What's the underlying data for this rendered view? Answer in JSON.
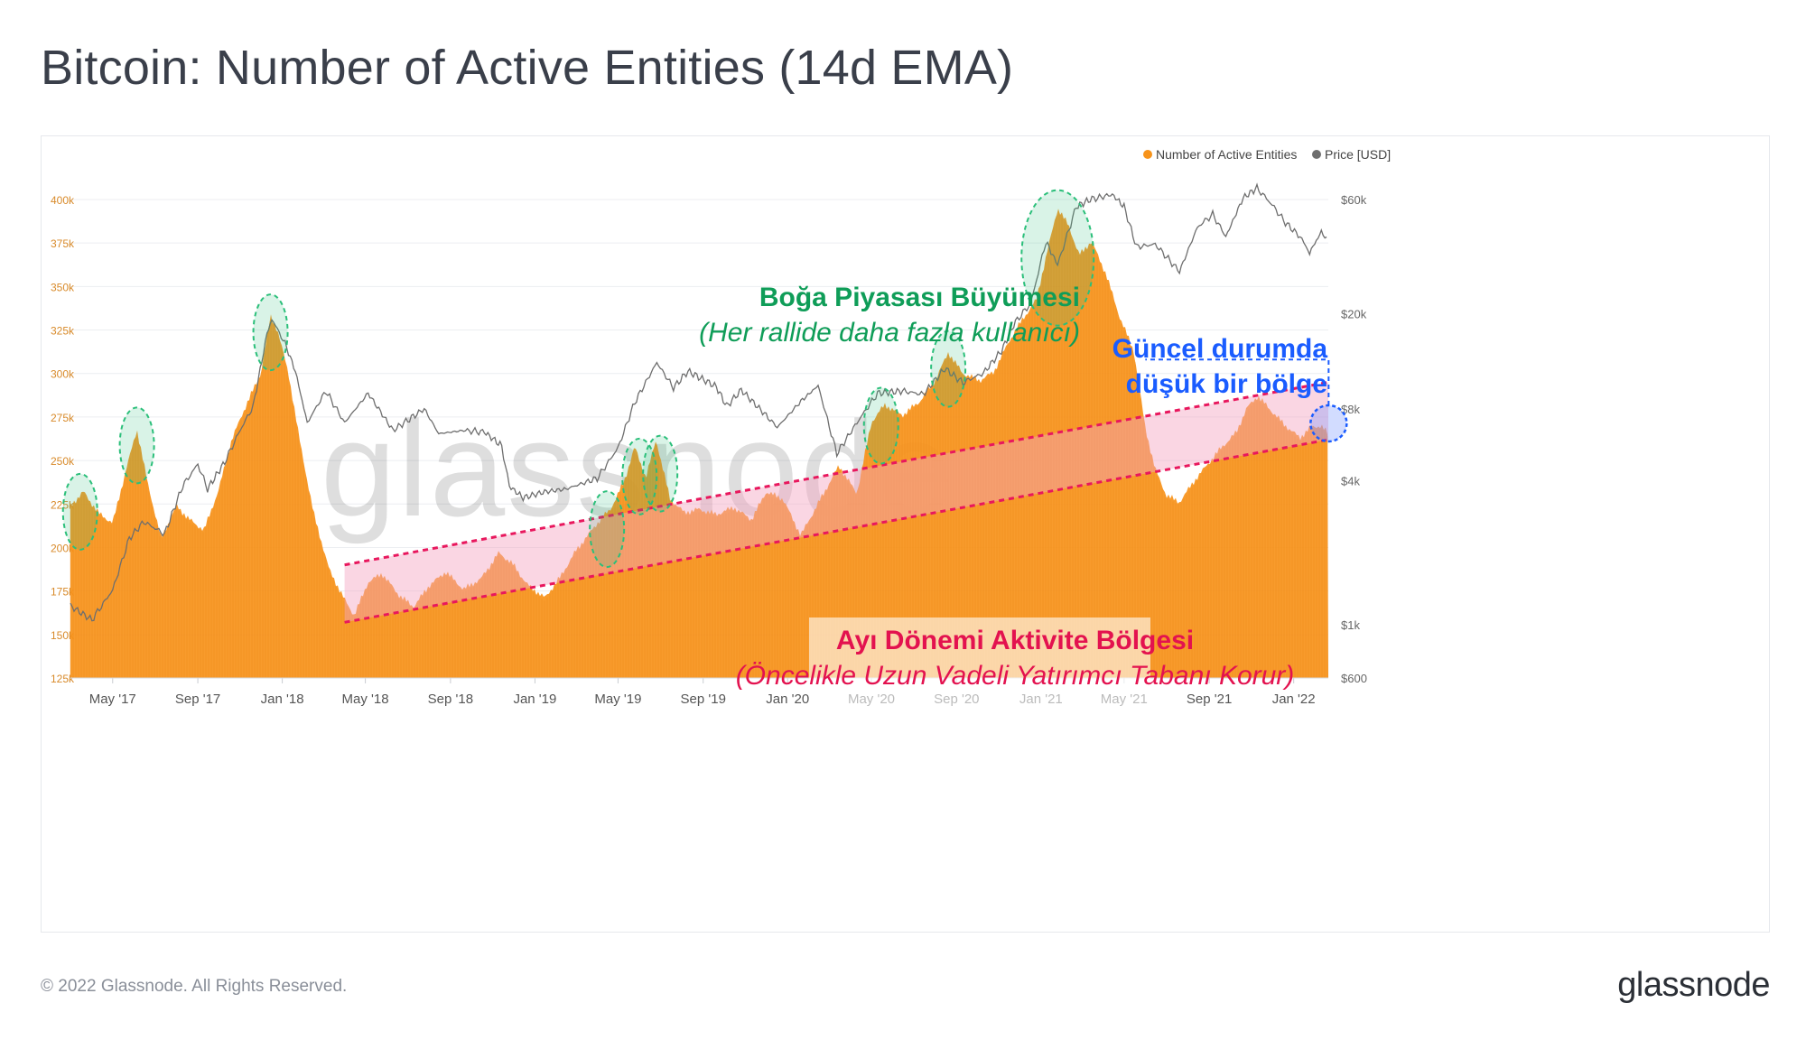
{
  "page": {
    "title": "Bitcoin: Number of Active Entities (14d EMA)",
    "copyright": "© 2022 Glassnode. All Rights Reserved.",
    "brand": "glassnode",
    "watermark": "glassnode"
  },
  "colors": {
    "entities": "#f7931a",
    "price": "#6e6e6e",
    "bear_band": "#f4a4c0",
    "bear_line": "#e8175d",
    "bull_text": "#0f9d58",
    "bull_circle": "#2bbf7a",
    "current_text": "#1a5cff"
  },
  "chart_data": {
    "type": "area",
    "title": "Bitcoin: Number of Active Entities (14d EMA)",
    "legend": {
      "placement": "top-right",
      "entries": [
        "Number of Active Entities",
        "Price [USD]"
      ]
    },
    "x_ticks": [
      "May '17",
      "Sep '17",
      "Jan '18",
      "May '18",
      "Sep '18",
      "Jan '19",
      "May '19",
      "Sep '19",
      "Jan '20",
      "May '20",
      "Sep '20",
      "Jan '21",
      "May '21",
      "Sep '21",
      "Jan '22"
    ],
    "x_range": [
      "2017-03-01",
      "2022-02-20"
    ],
    "y_left": {
      "ticks": [
        "125k",
        "150k",
        "175k",
        "200k",
        "225k",
        "250k",
        "275k",
        "300k",
        "325k",
        "350k",
        "375k",
        "400k"
      ],
      "range": [
        125000,
        400000
      ]
    },
    "y_right": {
      "scale": "log",
      "ticks": [
        "$600",
        "$1k",
        "$4k",
        "$8k",
        "$20k",
        "$60k"
      ],
      "range": [
        600,
        60000
      ]
    },
    "grid": true,
    "series": [
      {
        "name": "Number of Active Entities",
        "x": [
          "2017-03-01",
          "2017-03-20",
          "2017-04-10",
          "2017-05-01",
          "2017-05-20",
          "2017-06-05",
          "2017-06-20",
          "2017-07-10",
          "2017-08-01",
          "2017-08-20",
          "2017-09-10",
          "2017-10-01",
          "2017-10-20",
          "2017-11-10",
          "2017-12-01",
          "2017-12-15",
          "2017-12-25",
          "2018-01-10",
          "2018-01-25",
          "2018-02-15",
          "2018-03-10",
          "2018-04-01",
          "2018-04-15",
          "2018-05-05",
          "2018-05-25",
          "2018-06-20",
          "2018-07-10",
          "2018-08-01",
          "2018-08-25",
          "2018-09-20",
          "2018-10-15",
          "2018-11-10",
          "2018-12-01",
          "2018-12-20",
          "2019-01-15",
          "2019-02-05",
          "2019-03-01",
          "2019-04-01",
          "2019-04-20",
          "2019-05-10",
          "2019-05-25",
          "2019-06-10",
          "2019-06-25",
          "2019-07-15",
          "2019-08-05",
          "2019-08-25",
          "2019-09-20",
          "2019-10-15",
          "2019-11-10",
          "2019-12-01",
          "2019-12-25",
          "2020-01-20",
          "2020-02-15",
          "2020-03-15",
          "2020-04-10",
          "2020-05-01",
          "2020-05-20",
          "2020-06-15",
          "2020-07-10",
          "2020-08-01",
          "2020-08-20",
          "2020-09-10",
          "2020-10-05",
          "2020-10-25",
          "2020-11-15",
          "2020-12-05",
          "2020-12-25",
          "2021-01-10",
          "2021-01-25",
          "2021-02-10",
          "2021-02-25",
          "2021-03-15",
          "2021-04-05",
          "2021-04-25",
          "2021-05-15",
          "2021-06-01",
          "2021-06-15",
          "2021-07-01",
          "2021-07-20",
          "2021-08-10",
          "2021-09-01",
          "2021-09-20",
          "2021-10-10",
          "2021-10-25",
          "2021-11-10",
          "2021-12-01",
          "2021-12-20",
          "2022-01-10",
          "2022-01-25",
          "2022-02-10",
          "2022-02-20"
        ],
        "values": [
          224000,
          232000,
          220000,
          214000,
          244000,
          268000,
          238000,
          205000,
          224000,
          216000,
          210000,
          233000,
          262000,
          282000,
          300000,
          333000,
          325000,
          300000,
          264000,
          220000,
          187000,
          170000,
          161000,
          180000,
          185000,
          172000,
          166000,
          178000,
          186000,
          176000,
          182000,
          197000,
          190000,
          179000,
          171000,
          182000,
          198000,
          214000,
          222000,
          238000,
          258000,
          240000,
          262000,
          228000,
          220000,
          222000,
          219000,
          223000,
          216000,
          232000,
          228000,
          207000,
          226000,
          247000,
          231000,
          272000,
          282000,
          276000,
          284000,
          296000,
          312000,
          300000,
          296000,
          301000,
          318000,
          331000,
          342000,
          370000,
          395000,
          385000,
          368000,
          376000,
          357000,
          332000,
          313000,
          268000,
          245000,
          230000,
          226000,
          238000,
          249000,
          258000,
          266000,
          280000,
          287000,
          278000,
          270000,
          263000,
          269000,
          270000,
          265000
        ]
      },
      {
        "name": "Price [USD]",
        "x": [
          "2017-03-01",
          "2017-04-01",
          "2017-05-01",
          "2017-05-25",
          "2017-06-15",
          "2017-07-15",
          "2017-08-10",
          "2017-09-01",
          "2017-09-15",
          "2017-10-10",
          "2017-11-01",
          "2017-11-20",
          "2017-12-10",
          "2017-12-17",
          "2018-01-05",
          "2018-01-20",
          "2018-02-06",
          "2018-03-05",
          "2018-04-01",
          "2018-05-05",
          "2018-06-10",
          "2018-07-25",
          "2018-08-15",
          "2018-09-20",
          "2018-10-20",
          "2018-11-14",
          "2018-11-25",
          "2018-12-15",
          "2019-01-15",
          "2019-02-15",
          "2019-04-01",
          "2019-05-01",
          "2019-05-25",
          "2019-06-26",
          "2019-07-20",
          "2019-08-10",
          "2019-09-20",
          "2019-10-05",
          "2019-10-26",
          "2019-12-01",
          "2019-12-17",
          "2020-01-20",
          "2020-02-14",
          "2020-03-12",
          "2020-04-10",
          "2020-05-10",
          "2020-06-15",
          "2020-07-15",
          "2020-08-15",
          "2020-09-10",
          "2020-10-10",
          "2020-11-05",
          "2020-11-25",
          "2020-12-17",
          "2021-01-08",
          "2021-01-25",
          "2021-02-21",
          "2021-03-13",
          "2021-04-14",
          "2021-05-01",
          "2021-05-19",
          "2021-06-15",
          "2021-07-20",
          "2021-08-15",
          "2021-09-06",
          "2021-09-25",
          "2021-10-20",
          "2021-11-09",
          "2021-12-01",
          "2021-12-20",
          "2022-01-10",
          "2022-01-24",
          "2022-02-10",
          "2022-02-20"
        ],
        "values": [
          1200,
          1050,
          1400,
          2300,
          2700,
          2400,
          3800,
          4700,
          3700,
          4800,
          6500,
          8200,
          16500,
          19000,
          15000,
          11500,
          7000,
          9500,
          7000,
          9300,
          6500,
          8000,
          6300,
          6500,
          6400,
          5600,
          3800,
          3400,
          3600,
          3700,
          4100,
          5500,
          8500,
          12500,
          9800,
          11500,
          9900,
          8200,
          9600,
          7500,
          6700,
          8600,
          10000,
          5200,
          7000,
          9300,
          9500,
          9200,
          11800,
          10300,
          11300,
          14000,
          18500,
          22000,
          40000,
          32000,
          56000,
          60000,
          63000,
          56000,
          38000,
          39000,
          30000,
          46000,
          52000,
          42000,
          61000,
          67000,
          57000,
          48000,
          42000,
          36000,
          44000,
          40000
        ]
      }
    ],
    "annotations": [
      {
        "text": "Boğa Piyasası Büyümesi",
        "subtext": "(Her rallide daha fazla kullanıcı)"
      },
      {
        "text": "Güncel durumda",
        "subtext": "düşük bir bölge"
      },
      {
        "text": "Ayı Dönemi Aktivite Bölgesi",
        "subtext": "(Öncelikle Uzun Vadeli Yatırımcı Tabanı Korur)"
      }
    ],
    "bear_zone": {
      "start": "2018-04-01",
      "end": "2022-02-20",
      "upper": [
        190000,
        295000
      ],
      "lower": [
        157000,
        262000
      ]
    },
    "bull_peaks": [
      "2017-03-15",
      "2017-06-05",
      "2017-12-15",
      "2019-04-15",
      "2019-06-01",
      "2019-07-01",
      "2020-05-15",
      "2020-08-20",
      "2021-01-25"
    ],
    "current_zone_date": "2022-02-10"
  }
}
